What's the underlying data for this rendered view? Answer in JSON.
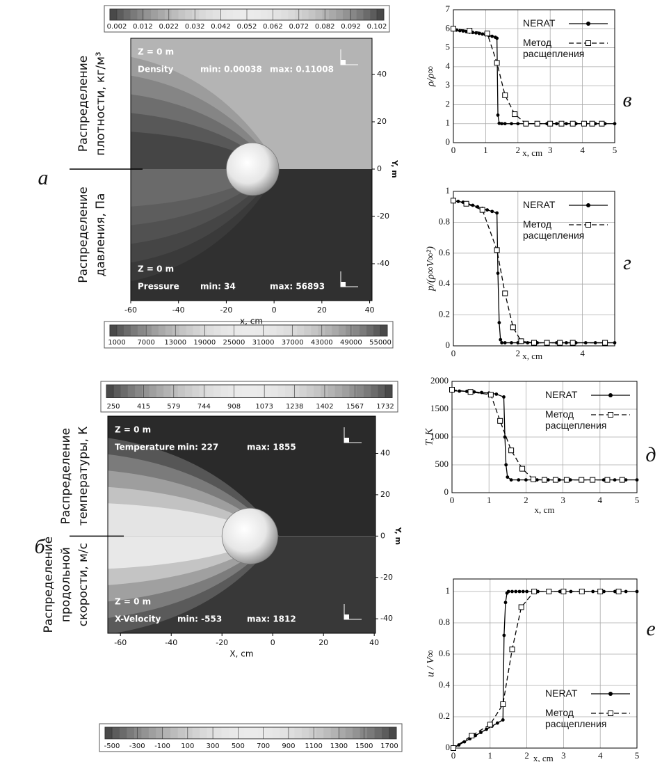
{
  "chart_data": [
    {
      "type": "contour",
      "panel_label": "а",
      "xlabel": "x, cm",
      "ylabel": "Y, m",
      "xlim": [
        -60,
        41
      ],
      "ylim": [
        -55.6,
        55.3
      ],
      "xticks": [
        -60,
        -40,
        -20,
        0,
        20,
        40
      ],
      "yticks": [
        -40,
        -20,
        0,
        20,
        40
      ],
      "upper": {
        "side_label": [
          "Распределение",
          "плотности, кг/м³"
        ],
        "zone": "Z = 0 m",
        "variable": "Density",
        "min": "min: 0.00038",
        "max": "max: 0.11008",
        "colorbar_ticks": [
          0.002,
          0.012,
          0.022,
          0.032,
          0.042,
          0.052,
          0.062,
          0.072,
          0.082,
          0.092,
          0.102
        ]
      },
      "lower": {
        "side_label": [
          "Распределение",
          "давления, Па"
        ],
        "zone": "Z = 0 m",
        "variable": "Pressure",
        "min": "min: 34",
        "max": "max: 56893",
        "colorbar_ticks": [
          1000,
          7000,
          13000,
          19000,
          25000,
          31000,
          37000,
          43000,
          49000,
          55000
        ]
      }
    },
    {
      "type": "contour",
      "panel_label": "б",
      "xlabel": "X, cm",
      "ylabel": "Y, m",
      "xlim": [
        -65,
        40.5
      ],
      "ylim": [
        -47,
        58
      ],
      "xticks": [
        -60,
        -40,
        -20,
        0,
        20,
        40
      ],
      "yticks": [
        -40,
        -20,
        0,
        20,
        40
      ],
      "upper": {
        "side_label": [
          "Распределение",
          "температуры, К"
        ],
        "zone": "Z = 0 m",
        "variable": "Temperature",
        "min": "min: 227",
        "max": "max: 1855",
        "colorbar_ticks": [
          250,
          415,
          579,
          744,
          908,
          1073,
          1238,
          1402,
          1567,
          1732
        ]
      },
      "lower": {
        "side_label": [
          "Распределение",
          "продольной",
          "скорости, м/с"
        ],
        "zone": "Z = 0 m",
        "variable": "X-Velocity",
        "min": "min: -553",
        "max": "max: 1812",
        "colorbar_ticks": [
          -500,
          -300,
          -100,
          100,
          300,
          500,
          700,
          900,
          1100,
          1300,
          1500,
          1700
        ]
      }
    },
    {
      "type": "line",
      "panel_label": "в",
      "xlabel": "x, cm",
      "ylabel": "ρ/ρ∞",
      "xlim": [
        0,
        5
      ],
      "ylim": [
        0,
        7
      ],
      "xticks": [
        0,
        1,
        2,
        3,
        4,
        5
      ],
      "yticks": [
        0,
        1,
        2,
        3,
        4,
        5,
        6,
        7
      ],
      "grid": true,
      "legend": "upper right",
      "series": [
        {
          "name": "NERAT",
          "color": "#000000",
          "marker": "circle",
          "dashed": false,
          "x": [
            0,
            0.1,
            0.2,
            0.3,
            0.4,
            0.5,
            0.6,
            0.7,
            0.8,
            0.9,
            1.0,
            1.1,
            1.2,
            1.3,
            1.35,
            1.38,
            1.42,
            1.5,
            1.6,
            1.8,
            2.0,
            2.3,
            2.6,
            2.9,
            3.2,
            3.5,
            3.8,
            4.1,
            4.4,
            4.7,
            5.0
          ],
          "values": [
            5.95,
            5.93,
            5.9,
            5.88,
            5.85,
            5.82,
            5.8,
            5.78,
            5.75,
            5.72,
            5.68,
            5.64,
            5.6,
            5.55,
            5.5,
            1.45,
            1.02,
            1.0,
            1.0,
            1.0,
            1.0,
            1.0,
            1.0,
            1.0,
            1.0,
            1.0,
            1.0,
            1.0,
            1.0,
            1.0,
            1.0
          ]
        },
        {
          "name": "Метод расщепления",
          "color": "#000000",
          "marker": "square",
          "dashed": true,
          "x": [
            0,
            0.5,
            1.05,
            1.35,
            1.6,
            1.9,
            2.25,
            2.6,
            3.0,
            3.35,
            3.7,
            4.05,
            4.3,
            4.6
          ],
          "values": [
            6.0,
            5.9,
            5.75,
            4.2,
            2.5,
            1.5,
            1.0,
            1.0,
            1.0,
            1.0,
            1.0,
            1.0,
            1.0,
            1.0
          ]
        }
      ]
    },
    {
      "type": "line",
      "panel_label": "г",
      "xlabel": "x, cm",
      "ylabel": "p/(ρ∞V∞²)",
      "xlim": [
        0,
        5
      ],
      "ylim": [
        0,
        1
      ],
      "xticks": [
        0,
        2,
        4
      ],
      "yticks": [
        0,
        0.2,
        0.4,
        0.6,
        0.8,
        1
      ],
      "grid": true,
      "legend": "upper right",
      "series": [
        {
          "name": "NERAT",
          "color": "#000000",
          "marker": "circle",
          "dashed": false,
          "x": [
            0,
            0.15,
            0.3,
            0.45,
            0.6,
            0.75,
            0.9,
            1.05,
            1.2,
            1.35,
            1.38,
            1.42,
            1.46,
            1.5,
            1.6,
            1.8,
            2.0,
            2.3,
            2.6,
            2.9,
            3.2,
            3.5,
            3.8,
            4.1,
            4.4,
            4.7,
            5.0
          ],
          "values": [
            0.94,
            0.935,
            0.93,
            0.92,
            0.91,
            0.9,
            0.89,
            0.88,
            0.87,
            0.86,
            0.47,
            0.15,
            0.04,
            0.02,
            0.02,
            0.02,
            0.02,
            0.02,
            0.02,
            0.02,
            0.02,
            0.02,
            0.02,
            0.02,
            0.02,
            0.02,
            0.02
          ]
        },
        {
          "name": "Метод расщепления",
          "color": "#000000",
          "marker": "square",
          "dashed": true,
          "x": [
            0,
            0.4,
            0.9,
            1.35,
            1.6,
            1.85,
            2.1,
            2.5,
            2.9,
            3.3,
            3.7,
            4.7
          ],
          "values": [
            0.94,
            0.92,
            0.88,
            0.62,
            0.34,
            0.12,
            0.03,
            0.02,
            0.02,
            0.02,
            0.02,
            0.02
          ]
        }
      ]
    },
    {
      "type": "line",
      "panel_label": "д",
      "xlabel": "x, cm",
      "ylabel": "T, K",
      "xlim": [
        0,
        5
      ],
      "ylim": [
        0,
        2000
      ],
      "xticks": [
        0,
        1,
        2,
        3,
        4,
        5
      ],
      "yticks": [
        0,
        500,
        1000,
        1500,
        2000
      ],
      "grid": true,
      "legend": "upper right",
      "series": [
        {
          "name": "NERAT",
          "color": "#000000",
          "marker": "circle",
          "dashed": false,
          "x": [
            0,
            0.2,
            0.4,
            0.6,
            0.8,
            1.0,
            1.2,
            1.4,
            1.43,
            1.46,
            1.5,
            1.6,
            1.8,
            2.0,
            2.3,
            2.6,
            2.9,
            3.2,
            3.5,
            3.8,
            4.1,
            4.4,
            4.7,
            5.0
          ],
          "values": [
            1830,
            1825,
            1820,
            1810,
            1800,
            1790,
            1770,
            1720,
            1000,
            500,
            280,
            230,
            230,
            230,
            230,
            230,
            230,
            230,
            230,
            230,
            230,
            230,
            230,
            230
          ]
        },
        {
          "name": "Метод расщепления",
          "color": "#000000",
          "marker": "square",
          "dashed": true,
          "x": [
            0,
            0.5,
            1.05,
            1.3,
            1.6,
            1.9,
            2.2,
            2.5,
            2.8,
            3.1,
            3.5,
            3.8,
            4.2,
            4.6
          ],
          "values": [
            1850,
            1810,
            1760,
            1290,
            760,
            430,
            240,
            230,
            230,
            230,
            230,
            230,
            230,
            230
          ]
        }
      ]
    },
    {
      "type": "line",
      "panel_label": "е",
      "xlabel": "x, cm",
      "ylabel": "u / V∞",
      "xlim": [
        0,
        5
      ],
      "ylim": [
        0,
        1.08
      ],
      "xticks": [
        0,
        1,
        2,
        3,
        4,
        5
      ],
      "yticks": [
        0,
        0.2,
        0.4,
        0.6,
        0.8,
        1
      ],
      "grid": true,
      "legend": "lower right",
      "series": [
        {
          "name": "NERAT",
          "color": "#000000",
          "marker": "circle",
          "dashed": false,
          "x": [
            0,
            0.15,
            0.3,
            0.45,
            0.6,
            0.75,
            0.9,
            1.05,
            1.2,
            1.35,
            1.38,
            1.42,
            1.46,
            1.5,
            1.6,
            1.7,
            1.8,
            1.9,
            2.0,
            2.3,
            2.6,
            2.9,
            3.2,
            3.5,
            3.8,
            4.1,
            4.4,
            4.7,
            5.0
          ],
          "values": [
            0,
            0.02,
            0.04,
            0.06,
            0.08,
            0.1,
            0.12,
            0.14,
            0.16,
            0.18,
            0.72,
            0.93,
            0.99,
            1.0,
            1.0,
            1.0,
            1.0,
            1.0,
            1.0,
            1.0,
            1.0,
            1.0,
            1.0,
            1.0,
            1.0,
            1.0,
            1.0,
            1.0,
            1.0
          ]
        },
        {
          "name": "Метод расщепления",
          "color": "#000000",
          "marker": "square",
          "dashed": true,
          "x": [
            0,
            0.5,
            1.0,
            1.35,
            1.6,
            1.85,
            2.2,
            2.6,
            3.0,
            3.5,
            4.0,
            4.5
          ],
          "values": [
            0,
            0.08,
            0.15,
            0.28,
            0.63,
            0.9,
            1.0,
            1.0,
            1.0,
            1.0,
            1.0,
            1.0
          ]
        }
      ]
    }
  ]
}
